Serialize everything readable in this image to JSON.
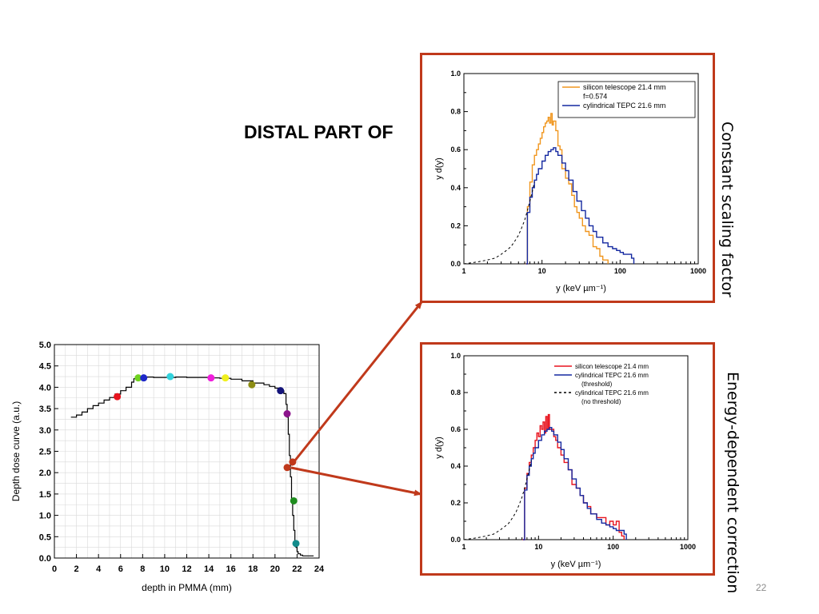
{
  "slide": {
    "title": "DISTAL PART OF",
    "page_number": "22",
    "label_top": "Constant scaling factor",
    "label_bottom": "Energy-dependent correction"
  },
  "colors": {
    "frame": "#c0391b",
    "arrow": "#c0391b",
    "silicon_top": "#f0961e",
    "silicon_bottom": "#e8141e",
    "tepc": "#1428a0",
    "grid": "#d9d9d9"
  },
  "chart_data": [
    {
      "id": "depth-dose",
      "type": "line",
      "title": "",
      "xlabel": "depth in PMMA (mm)",
      "ylabel": "Depth dose curve (a.u.)",
      "xlim": [
        0,
        24
      ],
      "ylim": [
        0,
        5
      ],
      "xticks": [
        "0",
        "2",
        "4",
        "6",
        "8",
        "10",
        "12",
        "14",
        "16",
        "18",
        "20",
        "22",
        "24"
      ],
      "yticks": [
        "0.0",
        "0.5",
        "1.0",
        "1.5",
        "2.0",
        "2.5",
        "3.0",
        "3.5",
        "4.0",
        "4.5",
        "5.0"
      ],
      "grid": true,
      "series": [
        {
          "x": [
            1.5,
            2.0,
            2.5,
            3.0,
            3.5,
            4.0,
            4.5,
            5.0,
            5.5,
            6.0,
            6.5,
            7.0,
            7.2,
            7.5,
            8,
            9,
            10,
            11,
            12,
            13,
            14,
            15,
            16,
            17,
            18,
            19,
            19.5,
            20,
            20.5,
            20.8,
            21.0,
            21.1,
            21.2,
            21.3,
            21.4,
            21.5,
            21.6,
            21.7,
            21.8,
            21.9,
            22.0,
            22.1,
            22.3,
            22.5,
            23.0,
            23.5
          ],
          "y": [
            3.3,
            3.35,
            3.42,
            3.5,
            3.57,
            3.63,
            3.7,
            3.76,
            3.84,
            3.92,
            4.0,
            4.12,
            4.2,
            4.24,
            4.24,
            4.23,
            4.23,
            4.24,
            4.23,
            4.23,
            4.22,
            4.21,
            4.19,
            4.15,
            4.1,
            4.06,
            4.02,
            3.98,
            3.92,
            3.85,
            3.6,
            3.3,
            2.9,
            2.4,
            1.9,
            1.4,
            1.0,
            0.65,
            0.4,
            0.25,
            0.15,
            0.1,
            0.07,
            0.05,
            0.05,
            0.05
          ]
        }
      ],
      "markers": [
        {
          "x": 5.7,
          "y": 3.78,
          "color": "#e8141e"
        },
        {
          "x": 7.6,
          "y": 4.22,
          "color": "#6fd21e"
        },
        {
          "x": 8.1,
          "y": 4.22,
          "color": "#1e28c8"
        },
        {
          "x": 10.5,
          "y": 4.25,
          "color": "#32d2dc"
        },
        {
          "x": 14.2,
          "y": 4.22,
          "color": "#f01edc"
        },
        {
          "x": 15.5,
          "y": 4.22,
          "color": "#f0f01e"
        },
        {
          "x": 17.9,
          "y": 4.06,
          "color": "#8c8c14"
        },
        {
          "x": 20.5,
          "y": 3.92,
          "color": "#14147a"
        },
        {
          "x": 21.1,
          "y": 3.38,
          "color": "#8c148c"
        },
        {
          "x": 21.7,
          "y": 1.34,
          "color": "#1e8c1e"
        },
        {
          "x": 21.9,
          "y": 0.34,
          "color": "#148c8c"
        },
        {
          "x": 21.1,
          "y": 2.12,
          "color": "#c0391b"
        },
        {
          "x": 21.6,
          "y": 2.25,
          "color": "#c0391b"
        }
      ]
    },
    {
      "id": "spectrum-top",
      "type": "line",
      "title": "",
      "xlabel": "y (keV µm⁻¹)",
      "ylabel": "y d(y)",
      "xscale": "log",
      "xlim": [
        1,
        1000
      ],
      "ylim": [
        0,
        1.0
      ],
      "xticks": [
        "1",
        "10",
        "100",
        "1000"
      ],
      "yticks": [
        "0.0",
        "0.2",
        "0.4",
        "0.6",
        "0.8",
        "1.0"
      ],
      "legend_position": "top-right",
      "series": [
        {
          "name": "silicon telescope  21.4 mm\nf=0.574",
          "x": [
            6.1,
            6.5,
            7,
            7.5,
            8,
            8.5,
            9,
            9.5,
            10,
            10.5,
            11,
            11.5,
            12,
            12.5,
            13,
            13.5,
            14,
            15,
            16,
            17,
            18,
            19,
            20,
            22,
            24,
            26,
            28,
            30,
            33,
            36,
            40,
            45,
            50,
            55,
            60,
            70
          ],
          "y": [
            0.0,
            0.3,
            0.43,
            0.52,
            0.57,
            0.6,
            0.63,
            0.66,
            0.69,
            0.72,
            0.74,
            0.75,
            0.77,
            0.74,
            0.79,
            0.73,
            0.75,
            0.7,
            0.62,
            0.6,
            0.5,
            0.5,
            0.45,
            0.42,
            0.36,
            0.3,
            0.27,
            0.24,
            0.2,
            0.17,
            0.15,
            0.09,
            0.08,
            0.04,
            0.02,
            0.0
          ]
        },
        {
          "name": "cylindrical TEPC 21.6 mm",
          "x": [
            6.2,
            6.5,
            7,
            7.5,
            8,
            8.5,
            9,
            10,
            11,
            12,
            13,
            14,
            15,
            16,
            18,
            20,
            22,
            25,
            28,
            32,
            36,
            40,
            45,
            50,
            60,
            70,
            80,
            90,
            100,
            110,
            120,
            130,
            140,
            150
          ],
          "y": [
            0.0,
            0.27,
            0.35,
            0.4,
            0.44,
            0.47,
            0.5,
            0.54,
            0.57,
            0.59,
            0.6,
            0.61,
            0.59,
            0.57,
            0.53,
            0.49,
            0.44,
            0.38,
            0.33,
            0.28,
            0.24,
            0.2,
            0.17,
            0.14,
            0.11,
            0.09,
            0.08,
            0.07,
            0.06,
            0.05,
            0.05,
            0.05,
            0.03,
            0.0
          ]
        },
        {
          "name": "",
          "dashed": true,
          "x": [
            1,
            1.5,
            2,
            2.5,
            3,
            3.5,
            4,
            4.5,
            5,
            5.5,
            6,
            6.5,
            7,
            7.5,
            8
          ],
          "y": [
            0.0,
            0.01,
            0.02,
            0.03,
            0.05,
            0.07,
            0.09,
            0.12,
            0.15,
            0.19,
            0.23,
            0.28,
            0.33,
            0.38,
            0.43
          ]
        }
      ]
    },
    {
      "id": "spectrum-bottom",
      "type": "line",
      "title": "",
      "xlabel": "y (keV µm⁻¹)",
      "ylabel": "y d(y)",
      "xscale": "log",
      "xlim": [
        1,
        1000
      ],
      "ylim": [
        0,
        1.0
      ],
      "xticks": [
        "1",
        "10",
        "100",
        "1000"
      ],
      "yticks": [
        "0.0",
        "0.2",
        "0.4",
        "0.6",
        "0.8",
        "1.0"
      ],
      "legend_position": "top-right",
      "series": [
        {
          "name": "silicon telescope 21.4 mm",
          "x": [
            6.1,
            6.5,
            7,
            7.5,
            8,
            8.5,
            9,
            9.5,
            10,
            10.5,
            11,
            11.5,
            12,
            12.5,
            13,
            13.5,
            14,
            15,
            16,
            17,
            18,
            20,
            22,
            25,
            28,
            32,
            36,
            40,
            45,
            50,
            60,
            70,
            80,
            90,
            100,
            110,
            120,
            130,
            140
          ],
          "y": [
            0.0,
            0.28,
            0.36,
            0.42,
            0.46,
            0.5,
            0.54,
            0.58,
            0.56,
            0.62,
            0.6,
            0.64,
            0.58,
            0.67,
            0.6,
            0.68,
            0.6,
            0.6,
            0.56,
            0.54,
            0.5,
            0.46,
            0.42,
            0.38,
            0.3,
            0.28,
            0.24,
            0.2,
            0.18,
            0.14,
            0.12,
            0.12,
            0.08,
            0.1,
            0.08,
            0.1,
            0.04,
            0.02,
            0.0
          ]
        },
        {
          "name": "cylindrical TEPC 21.6 mm\n(threshold)",
          "x": [
            6.2,
            6.5,
            7,
            7.5,
            8,
            8.5,
            9,
            10,
            11,
            12,
            13,
            14,
            15,
            16,
            18,
            20,
            22,
            25,
            28,
            32,
            36,
            40,
            45,
            50,
            60,
            70,
            80,
            90,
            100,
            110,
            120,
            130,
            140,
            150
          ],
          "y": [
            0.0,
            0.27,
            0.35,
            0.4,
            0.44,
            0.47,
            0.5,
            0.54,
            0.57,
            0.59,
            0.6,
            0.61,
            0.59,
            0.57,
            0.53,
            0.49,
            0.44,
            0.38,
            0.33,
            0.28,
            0.24,
            0.2,
            0.17,
            0.14,
            0.11,
            0.09,
            0.08,
            0.07,
            0.06,
            0.05,
            0.05,
            0.05,
            0.03,
            0.0
          ]
        },
        {
          "name": "cylindrical TEPC 21.6 mm\n(no threshold)",
          "dashed": true,
          "x": [
            1,
            1.5,
            2,
            2.5,
            3,
            3.5,
            4,
            4.5,
            5,
            5.5,
            6,
            6.5,
            7,
            7.5,
            8
          ],
          "y": [
            0.0,
            0.01,
            0.02,
            0.03,
            0.05,
            0.07,
            0.09,
            0.12,
            0.15,
            0.19,
            0.23,
            0.28,
            0.33,
            0.38,
            0.43
          ]
        }
      ]
    }
  ]
}
